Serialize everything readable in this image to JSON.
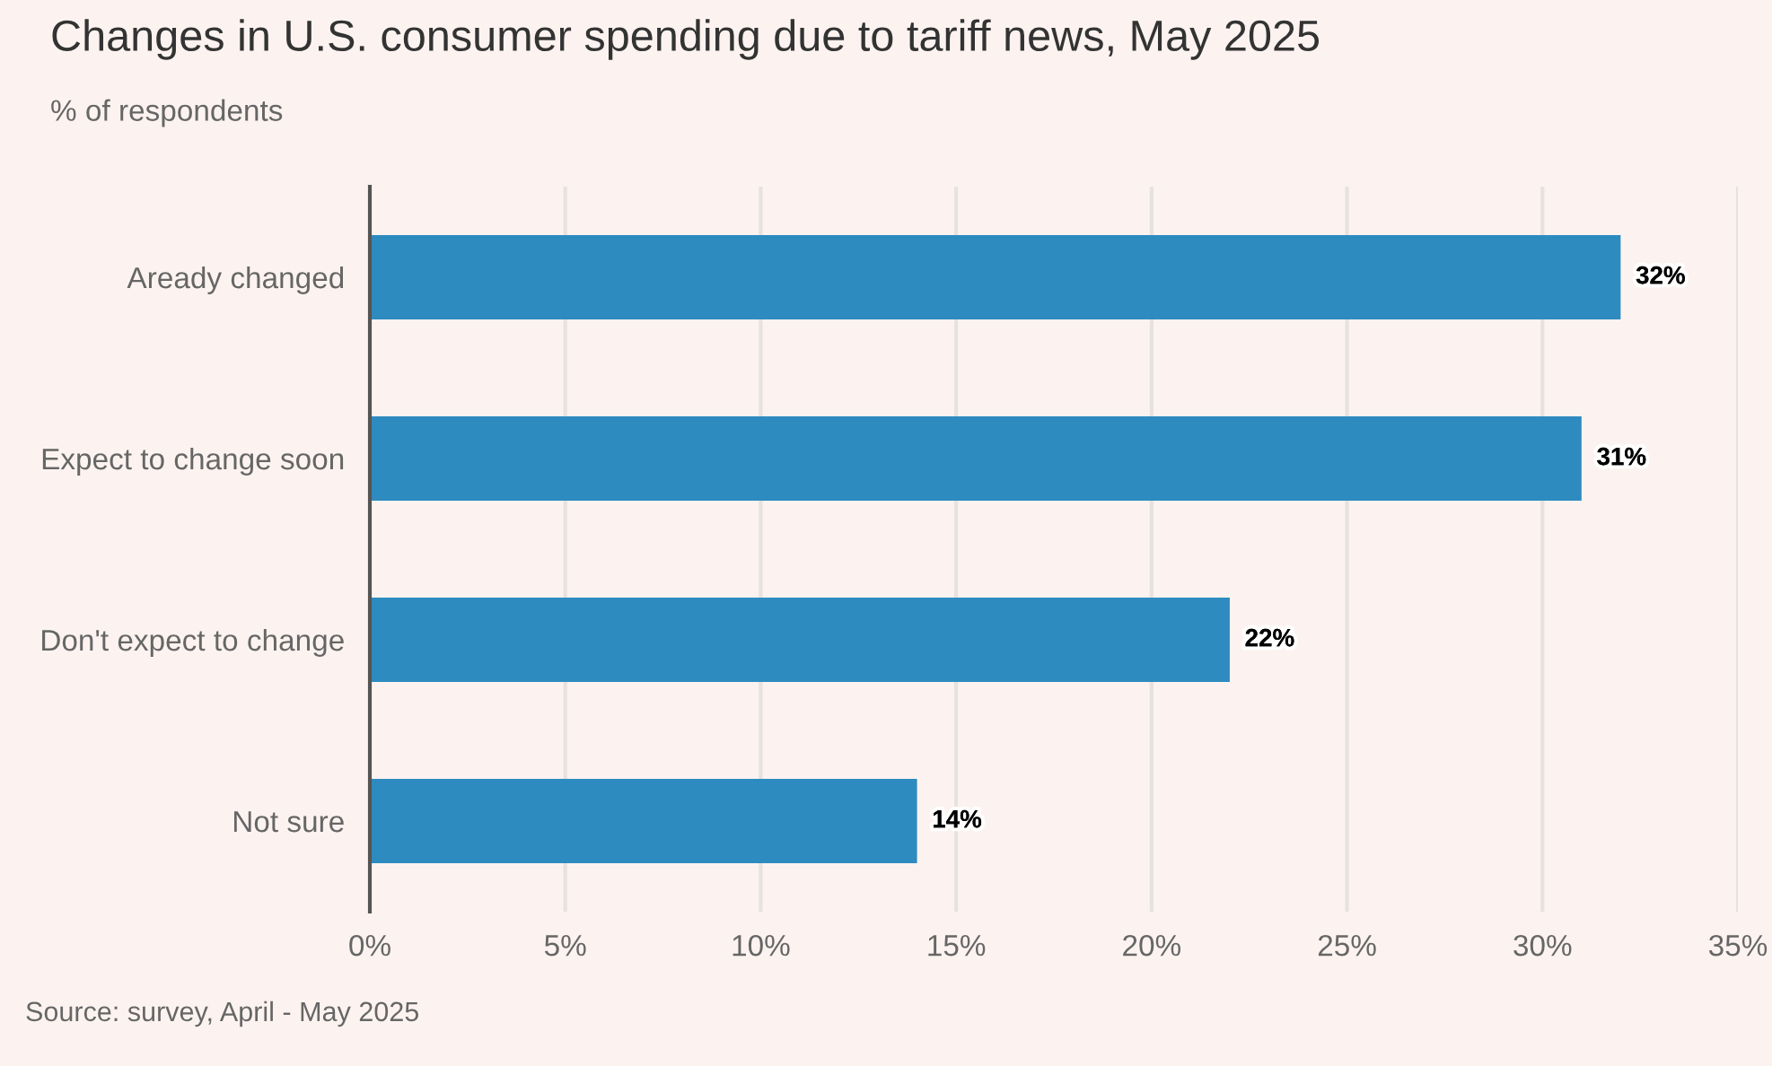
{
  "chart_data": {
    "type": "bar",
    "orientation": "horizontal",
    "title": "Changes in U.S. consumer spending due to tariff news, May 2025",
    "subtitle": "% of respondents",
    "categories": [
      "Aready changed",
      "Expect to change soon",
      "Don't expect to change",
      "Not sure"
    ],
    "values": [
      32,
      31,
      22,
      14
    ],
    "color": "#2e8bc0",
    "value_labels": [
      "32%",
      "31%",
      "22%",
      "14%"
    ],
    "xlim": [
      0,
      35
    ],
    "xticks": [
      {
        "value": 0,
        "label": "0%"
      },
      {
        "value": 5,
        "label": "5%"
      },
      {
        "value": 10,
        "label": "10%"
      },
      {
        "value": 15,
        "label": "15%"
      },
      {
        "value": 20,
        "label": "20%"
      },
      {
        "value": 25,
        "label": "25%"
      },
      {
        "value": 30,
        "label": "30%"
      },
      {
        "value": 35,
        "label": "35%"
      }
    ],
    "grid": "x",
    "legend": false,
    "annotations": [
      "Source: survey, April - May 2025"
    ]
  }
}
